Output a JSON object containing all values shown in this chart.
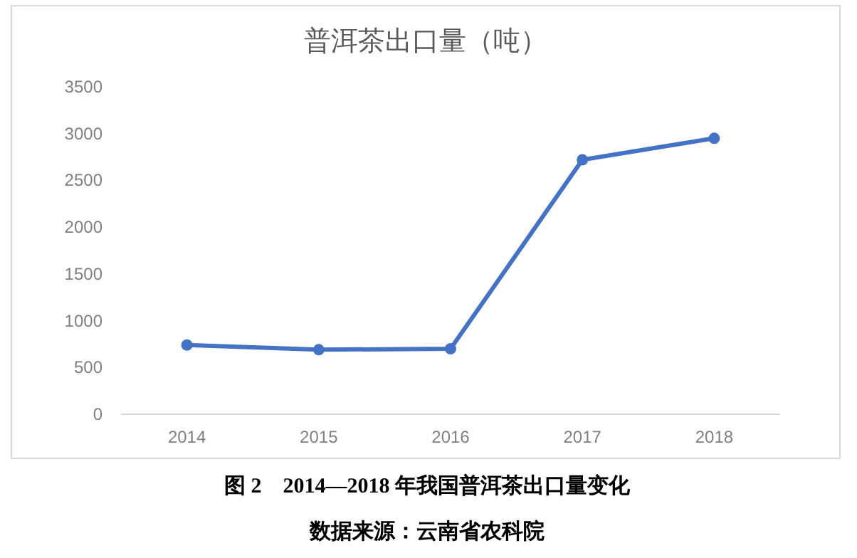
{
  "chart_data": {
    "type": "line",
    "title": "普洱茶出口量（吨）",
    "categories": [
      "2014",
      "2015",
      "2016",
      "2017",
      "2018"
    ],
    "series": [
      {
        "color": "#4472c4",
        "values": [
          740,
          690,
          700,
          2720,
          2950
        ]
      }
    ],
    "ylim": [
      0,
      3500
    ],
    "yticks": [
      0,
      500,
      1000,
      1500,
      2000,
      2500,
      3000,
      3500
    ],
    "grid": false,
    "marker": "circle",
    "line_style": "solid",
    "annotations": [
      "图 2　2014—2018 年我国普洱茶出口量变化",
      "数据来源：云南省农科院"
    ]
  }
}
